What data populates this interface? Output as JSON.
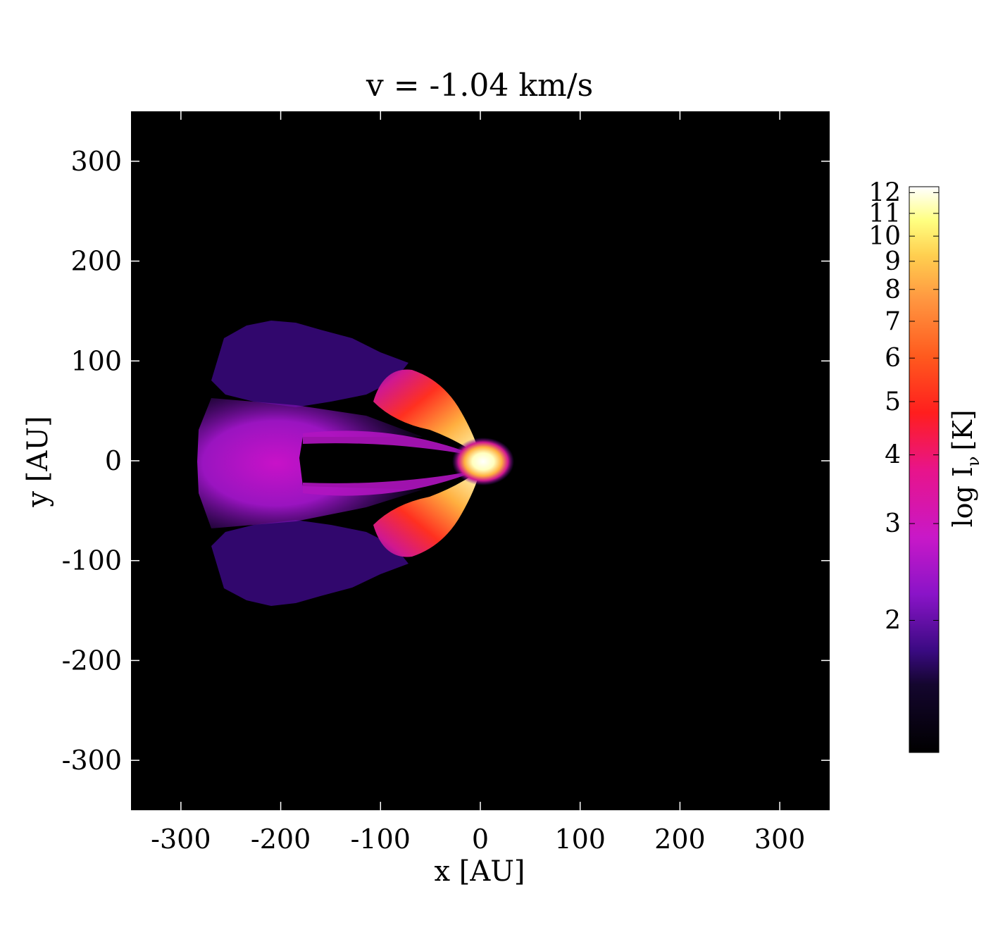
{
  "chart_data": {
    "type": "heatmap",
    "title": "v =  -1.04 km/s",
    "xlabel": "x [AU]",
    "ylabel": "y [AU]",
    "xlim": [
      -350,
      350
    ],
    "ylim": [
      -350,
      350
    ],
    "x_ticks": [
      -300,
      -200,
      -100,
      0,
      100,
      200,
      300
    ],
    "y_ticks": [
      300,
      200,
      100,
      0,
      -100,
      -200,
      -300
    ],
    "colorbar": {
      "label_main": "log I",
      "label_sub": "ν",
      "label_unit": "[K]",
      "scale": "log",
      "range": [
        1.15,
        12.3
      ],
      "ticks": [
        "12",
        "11",
        "10",
        "9",
        "8",
        "7",
        "6",
        "5",
        "4",
        "3",
        "2"
      ],
      "colormap": "afmhot-like (black → purple → magenta → red → orange → yellow → white)"
    },
    "background_color": "#000000",
    "features": [
      {
        "name": "central-source",
        "x": 5,
        "y": 0,
        "value": 12
      },
      {
        "name": "upper-lobe-bright",
        "x": -45,
        "y": 60,
        "value": 6.5
      },
      {
        "name": "lower-lobe-bright",
        "x": -45,
        "y": -60,
        "value": 6.5
      },
      {
        "name": "outer-shell-core",
        "x": -235,
        "y": 0,
        "value": 2.6
      }
    ]
  }
}
